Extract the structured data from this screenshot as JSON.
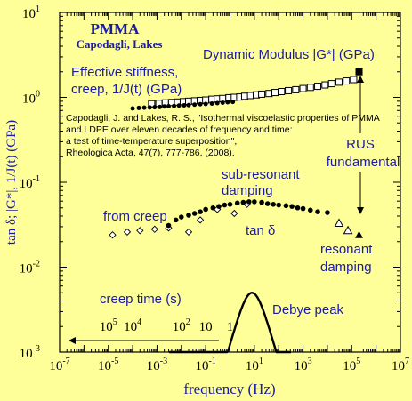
{
  "chart_data": {
    "type": "scatter",
    "title": "PMMA",
    "subtitle": "Capodagli, Lakes",
    "xlabel": "frequency (Hz)",
    "ylabel": "tan δ; |G*|, 1/J(t) (GPa)",
    "xscale": "log",
    "yscale": "log",
    "xlim": [
      1e-07,
      10000000.0
    ],
    "ylim": [
      0.001,
      10
    ],
    "x_tick_exponents": [
      -7,
      -5,
      -3,
      -1,
      1,
      3,
      5,
      7
    ],
    "y_tick_exponents": [
      -3,
      -2,
      -1,
      0,
      1
    ],
    "tick_base": "10",
    "grid": false,
    "citation": [
      "Capodagli, J. and Lakes, R. S., \"Isothermal viscoelastic properties of PMMA",
      "and LDPE over eleven decades of frequency and time:",
      "a test of time-temperature superposition\",",
      "Rheologica Acta,  47(7), 777-786,  (2008)."
    ],
    "annotations": {
      "dynamic_modulus": "Dynamic Modulus |G*| (GPa)",
      "effective_stiffness": [
        "Effective stiffness,",
        "creep, 1/J(t) (GPa)"
      ],
      "rus": [
        "RUS",
        "fundamental"
      ],
      "sub_resonant": [
        "sub-resonant",
        "damping"
      ],
      "from_creep": "from creep",
      "tan_delta": "tan δ",
      "resonant": [
        "resonant",
        "damping"
      ],
      "creep_time": "creep time (s)",
      "debye_peak": "Debye peak"
    },
    "creep_time_axis": {
      "labels": [
        {
          "base": "10",
          "exp": "5",
          "freq": 1e-05
        },
        {
          "base": "10",
          "exp": "4",
          "freq": 0.0001
        },
        {
          "base": "10",
          "exp": "2",
          "freq": 0.01
        },
        {
          "base": "10",
          "exp": "",
          "freq": 0.1
        },
        {
          "base": "1",
          "exp": "",
          "freq": 1
        }
      ]
    },
    "series": [
      {
        "marker": "open-square",
        "x": [
          0.0006,
          0.0012,
          0.0022,
          0.004,
          0.007,
          0.012,
          0.02,
          0.035,
          0.06,
          0.1,
          0.18,
          0.3,
          0.5,
          0.9,
          1.5,
          2.5,
          4,
          7,
          12,
          20,
          40,
          70,
          130,
          250,
          500,
          1000,
          2000,
          4000,
          8000,
          15000,
          30000,
          60000,
          120000
        ],
        "y": [
          0.84,
          0.85,
          0.86,
          0.87,
          0.88,
          0.89,
          0.9,
          0.91,
          0.92,
          0.93,
          0.95,
          0.96,
          0.97,
          0.99,
          1.0,
          1.01,
          1.03,
          1.05,
          1.07,
          1.09,
          1.11,
          1.14,
          1.17,
          1.2,
          1.23,
          1.27,
          1.31,
          1.35,
          1.4,
          1.45,
          1.51,
          1.56,
          1.62
        ]
      },
      {
        "marker": "filled-circle-small",
        "x": [
          0.0001,
          0.00018,
          0.0003,
          0.0005,
          0.0008,
          0.0013,
          0.002,
          0.003,
          0.005,
          0.008,
          0.013,
          0.02,
          0.035,
          0.06,
          0.1,
          0.18,
          0.3,
          0.5,
          0.8,
          1.3
        ],
        "y": [
          0.74,
          0.75,
          0.755,
          0.76,
          0.765,
          0.77,
          0.78,
          0.785,
          0.79,
          0.8,
          0.805,
          0.81,
          0.82,
          0.83,
          0.835,
          0.845,
          0.855,
          0.865,
          0.875,
          0.885
        ]
      },
      {
        "marker": "filled-square",
        "x": [
          200000
        ],
        "y": [
          2.0
        ]
      },
      {
        "marker": "open-diamond",
        "x": [
          1.5e-05,
          6e-05,
          0.0002,
          0.0008,
          0.003,
          0.02,
          0.06,
          0.3,
          1.5,
          5
        ],
        "y": [
          0.024,
          0.026,
          0.027,
          0.028,
          0.029,
          0.026,
          0.036,
          0.048,
          0.043,
          0.055
        ]
      },
      {
        "marker": "filled-circle",
        "x": [
          0.003,
          0.006,
          0.01,
          0.02,
          0.035,
          0.06,
          0.1,
          0.2,
          0.35,
          0.6,
          1,
          2,
          3.5,
          6,
          10,
          20,
          35,
          60,
          100,
          200,
          350,
          600,
          1000,
          2000,
          4000,
          10000
        ],
        "y": [
          0.031,
          0.036,
          0.039,
          0.041,
          0.043,
          0.045,
          0.048,
          0.05,
          0.052,
          0.054,
          0.055,
          0.057,
          0.058,
          0.059,
          0.059,
          0.058,
          0.056,
          0.055,
          0.054,
          0.053,
          0.052,
          0.05,
          0.049,
          0.047,
          0.045,
          0.044
        ]
      },
      {
        "marker": "open-triangle",
        "x": [
          30000,
          70000
        ],
        "y": [
          0.033,
          0.027
        ]
      },
      {
        "marker": "filled-triangle",
        "x": [
          200000
        ],
        "y": [
          0.024
        ]
      },
      {
        "marker": "debye-curve",
        "center": 8,
        "peak": 0.005
      }
    ]
  }
}
